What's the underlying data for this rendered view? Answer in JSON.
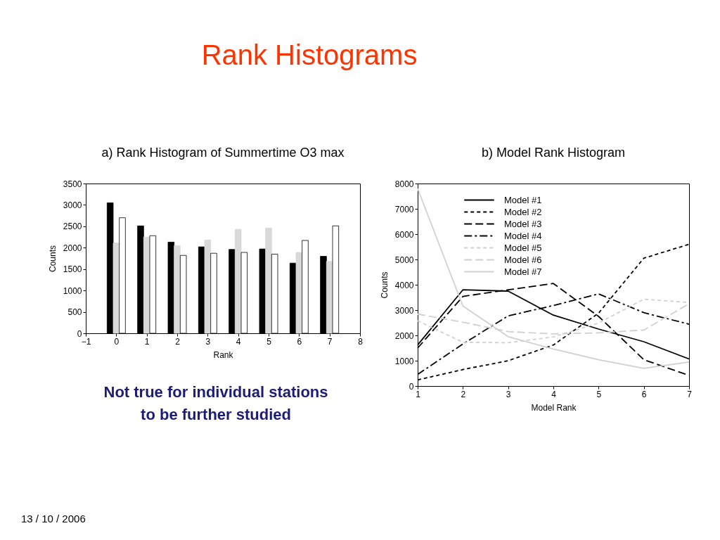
{
  "chart_data": [
    {
      "type": "other",
      "title": "Rank Histograms",
      "annotations": [
        "13 / 10 / 2006"
      ]
    },
    {
      "type": "bar",
      "title": "a) Rank Histogram of Summertime O3 max",
      "xlabel": "Rank",
      "ylabel": "Counts",
      "x": [
        0,
        1,
        2,
        3,
        4,
        5,
        6,
        7
      ],
      "xlim": [
        -1,
        8
      ],
      "xticks": [
        -1,
        0,
        1,
        2,
        3,
        4,
        5,
        6,
        7,
        8
      ],
      "ylim": [
        0,
        3500
      ],
      "yticks": [
        0,
        500,
        1000,
        1500,
        2000,
        2500,
        3000,
        3500
      ],
      "series": [
        {
          "color": "#000000",
          "values": [
            3050,
            2510,
            2130,
            2020,
            1960,
            1970,
            1640,
            1800
          ]
        },
        {
          "color": "#d9d9d9",
          "values": [
            2110,
            2250,
            2050,
            2180,
            2430,
            2460,
            1890,
            1680
          ]
        },
        {
          "color": "#ffffff",
          "values": [
            2700,
            2280,
            1820,
            1870,
            1890,
            1850,
            2170,
            2510
          ]
        }
      ],
      "annotations": [
        "Not true for individual stations\nto be further studied"
      ]
    },
    {
      "type": "line",
      "title": "b) Model Rank Histogram",
      "xlabel": "Model Rank",
      "ylabel": "Counts",
      "x": [
        1,
        2,
        3,
        4,
        5,
        6,
        7
      ],
      "xlim": [
        1,
        7
      ],
      "xticks": [
        1,
        2,
        3,
        4,
        5,
        6,
        7
      ],
      "ylim": [
        0,
        8000
      ],
      "yticks": [
        0,
        1000,
        2000,
        3000,
        4000,
        5000,
        6000,
        7000,
        8000
      ],
      "legend": "top left",
      "series": [
        {
          "name": "Model #1",
          "color": "#000000",
          "line_style": "solid",
          "values": [
            1620,
            3800,
            3750,
            2800,
            2250,
            1750,
            1070
          ]
        },
        {
          "name": "Model #2",
          "color": "#000000",
          "line_style": "dashed",
          "values": [
            240,
            650,
            1000,
            1620,
            2880,
            5050,
            5600
          ]
        },
        {
          "name": "Model #3",
          "color": "#000000",
          "line_style": "longdashed",
          "values": [
            1500,
            3540,
            3800,
            4050,
            2750,
            1040,
            420
          ]
        },
        {
          "name": "Model #4",
          "color": "#000000",
          "line_style": "dashdot",
          "values": [
            460,
            1660,
            2770,
            3180,
            3640,
            2900,
            2440
          ]
        },
        {
          "name": "Model #5",
          "color": "#d0d0d0",
          "line_style": "dashed",
          "values": [
            2580,
            1730,
            1710,
            1940,
            2490,
            3430,
            3300
          ]
        },
        {
          "name": "Model #6",
          "color": "#d0d0d0",
          "line_style": "longdashed",
          "values": [
            2840,
            2520,
            2150,
            2060,
            2100,
            2210,
            3250
          ]
        },
        {
          "name": "Model #7",
          "color": "#d0d0d0",
          "line_style": "solid",
          "values": [
            7800,
            3160,
            1950,
            1460,
            1040,
            700,
            950
          ]
        }
      ]
    }
  ]
}
